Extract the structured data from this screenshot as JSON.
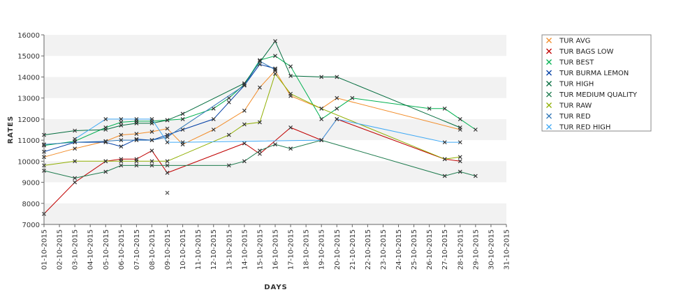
{
  "chart_data": {
    "type": "line",
    "xlabel": "DAYS",
    "ylabel": "RATES",
    "ylim": [
      7000,
      16000
    ],
    "yticks": [
      7000,
      8000,
      9000,
      10000,
      11000,
      12000,
      13000,
      14000,
      15000,
      16000
    ],
    "grid": "alternating horizontal bands",
    "legend_position": "right",
    "categories": [
      "01-10-2015",
      "02-10-2015",
      "03-10-2015",
      "04-10-2015",
      "05-10-2015",
      "06-10-2015",
      "07-10-2015",
      "08-10-2015",
      "09-10-2015",
      "10-10-2015",
      "11-10-2015",
      "12-10-2015",
      "13-10-2015",
      "14-10-2015",
      "15-10-2015",
      "16-10-2015",
      "17-10-2015",
      "18-10-2015",
      "19-10-2015",
      "20-10-2015",
      "21-10-2015",
      "22-10-2015",
      "23-10-2015",
      "24-10-2015",
      "25-10-2015",
      "26-10-2015",
      "27-10-2015",
      "28-10-2015",
      "29-10-2015",
      "30-10-2015",
      "31-10-2015"
    ],
    "series": [
      {
        "name": "TUR AVG",
        "color": "#f28c28",
        "points": [
          [
            "01-10-2015",
            10200
          ],
          [
            "03-10-2015",
            10600
          ],
          [
            "05-10-2015",
            10950
          ],
          [
            "06-10-2015",
            11250
          ],
          [
            "07-10-2015",
            11300
          ],
          [
            "08-10-2015",
            11400
          ],
          [
            "09-10-2015",
            11550
          ],
          [
            "10-10-2015",
            10800
          ],
          [
            "12-10-2015",
            11500
          ],
          [
            "14-10-2015",
            12400
          ],
          [
            "15-10-2015",
            13500
          ],
          [
            "16-10-2015",
            14300
          ],
          [
            "17-10-2015",
            13100
          ],
          [
            "19-10-2015",
            12500
          ],
          [
            "20-10-2015",
            13000
          ],
          [
            "28-10-2015",
            11500
          ]
        ]
      },
      {
        "name": "TUR BAGS LOW",
        "color": "#c00000",
        "points": [
          [
            "01-10-2015",
            7500
          ],
          [
            "03-10-2015",
            9000
          ],
          [
            "05-10-2015",
            10000
          ],
          [
            "06-10-2015",
            10100
          ],
          [
            "07-10-2015",
            10100
          ],
          [
            "08-10-2015",
            10500
          ],
          [
            "09-10-2015",
            9450
          ],
          [
            "14-10-2015",
            10850
          ],
          [
            "15-10-2015",
            10350
          ],
          [
            "17-10-2015",
            11600
          ],
          [
            "19-10-2015",
            11000
          ],
          [
            "20-10-2015",
            12000
          ],
          [
            "27-10-2015",
            10100
          ],
          [
            "28-10-2015",
            10000
          ]
        ]
      },
      {
        "name": "TUR BEST",
        "color": "#00b050",
        "points": [
          [
            "01-10-2015",
            10750
          ],
          [
            "03-10-2015",
            10950
          ],
          [
            "05-10-2015",
            11600
          ],
          [
            "06-10-2015",
            11850
          ],
          [
            "07-10-2015",
            11900
          ],
          [
            "08-10-2015",
            11900
          ],
          [
            "09-10-2015",
            11950
          ],
          [
            "10-10-2015",
            12000
          ],
          [
            "12-10-2015",
            12500
          ],
          [
            "13-10-2015",
            13000
          ],
          [
            "14-10-2015",
            13650
          ],
          [
            "15-10-2015",
            14800
          ],
          [
            "16-10-2015",
            15000
          ],
          [
            "17-10-2015",
            14500
          ],
          [
            "19-10-2015",
            12000
          ],
          [
            "20-10-2015",
            12500
          ],
          [
            "21-10-2015",
            13000
          ],
          [
            "26-10-2015",
            12500
          ],
          [
            "27-10-2015",
            12500
          ],
          [
            "28-10-2015",
            12000
          ],
          [
            "29-10-2015",
            11500
          ]
        ]
      },
      {
        "name": "TUR BURMA LEMON",
        "color": "#003da5",
        "points": [
          [
            "01-10-2015",
            10450
          ],
          [
            "03-10-2015",
            10900
          ],
          [
            "05-10-2015",
            10900
          ],
          [
            "06-10-2015",
            10700
          ],
          [
            "07-10-2015",
            11050
          ],
          [
            "08-10-2015",
            11000
          ],
          [
            "09-10-2015",
            11250
          ],
          [
            "10-10-2015",
            11500
          ],
          [
            "12-10-2015",
            12000
          ],
          [
            "13-10-2015",
            12800
          ],
          [
            "14-10-2015",
            13600
          ],
          [
            "15-10-2015",
            14600
          ],
          [
            "16-10-2015",
            14400
          ]
        ]
      },
      {
        "name": "TUR HIGH",
        "color": "#006b3c",
        "points": [
          [
            "01-10-2015",
            11250
          ],
          [
            "03-10-2015",
            11450
          ],
          [
            "05-10-2015",
            11500
          ],
          [
            "06-10-2015",
            11700
          ],
          [
            "07-10-2015",
            11800
          ],
          [
            "08-10-2015",
            11800
          ],
          [
            "09-10-2015",
            11950
          ],
          [
            "10-10-2015",
            12250
          ],
          [
            "14-10-2015",
            13700
          ],
          [
            "16-10-2015",
            15700
          ],
          [
            "17-10-2015",
            14050
          ],
          [
            "19-10-2015",
            14000
          ],
          [
            "20-10-2015",
            14000
          ],
          [
            "28-10-2015",
            11600
          ]
        ]
      },
      {
        "name": "TUR MEDIUM QUALITY",
        "color": "#1e7b4e",
        "points": [
          [
            "01-10-2015",
            9550
          ],
          [
            "03-10-2015",
            9200
          ],
          [
            "05-10-2015",
            9500
          ],
          [
            "06-10-2015",
            9800
          ],
          [
            "07-10-2015",
            9800
          ],
          [
            "08-10-2015",
            9800
          ],
          [
            "09-10-2015",
            9800
          ],
          [
            "13-10-2015",
            9800
          ],
          [
            "14-10-2015",
            10000
          ],
          [
            "15-10-2015",
            10500
          ],
          [
            "16-10-2015",
            10800
          ],
          [
            "17-10-2015",
            10600
          ],
          [
            "19-10-2015",
            11000
          ],
          [
            "27-10-2015",
            9300
          ],
          [
            "28-10-2015",
            9500
          ],
          [
            "29-10-2015",
            9300
          ]
        ]
      },
      {
        "name": "TUR RAW",
        "color": "#8fae00",
        "points": [
          [
            "01-10-2015",
            9800
          ],
          [
            "03-10-2015",
            10000
          ],
          [
            "05-10-2015",
            10000
          ],
          [
            "06-10-2015",
            10000
          ],
          [
            "07-10-2015",
            10000
          ],
          [
            "08-10-2015",
            10000
          ],
          [
            "09-10-2015",
            10000
          ],
          [
            "13-10-2015",
            11250
          ],
          [
            "14-10-2015",
            11750
          ],
          [
            "15-10-2015",
            11850
          ],
          [
            "16-10-2015",
            14150
          ],
          [
            "17-10-2015",
            13200
          ],
          [
            "19-10-2015",
            12500
          ],
          [
            "27-10-2015",
            10100
          ],
          [
            "28-10-2015",
            10200
          ]
        ]
      },
      {
        "name": "TUR RED",
        "color": "#2e75b6",
        "points": [
          [
            "01-10-2015",
            10800
          ],
          [
            "03-10-2015",
            10900
          ],
          [
            "05-10-2015",
            10950
          ],
          [
            "06-10-2015",
            11000
          ],
          [
            "07-10-2015",
            11000
          ],
          [
            "08-10-2015",
            11000
          ],
          [
            "09-10-2015",
            11150
          ],
          [
            "14-10-2015",
            13600
          ],
          [
            "15-10-2015",
            14750
          ],
          [
            "16-10-2015",
            14350
          ]
        ]
      },
      {
        "name": "TUR RED HIGH",
        "color": "#3fa9f5",
        "points": [
          [
            "03-10-2015",
            11050
          ],
          [
            "05-10-2015",
            12000
          ],
          [
            "06-10-2015",
            12000
          ],
          [
            "07-10-2015",
            12000
          ],
          [
            "08-10-2015",
            12000
          ],
          [
            "09-10-2015",
            10900
          ],
          [
            "10-10-2015",
            10900
          ],
          [
            "19-10-2015",
            11000
          ],
          [
            "20-10-2015",
            12000
          ],
          [
            "27-10-2015",
            10900
          ],
          [
            "28-10-2015",
            10900
          ]
        ]
      }
    ],
    "outliers": [
      {
        "x": "09-10-2015",
        "y": 8500,
        "color": "#555555"
      }
    ]
  }
}
